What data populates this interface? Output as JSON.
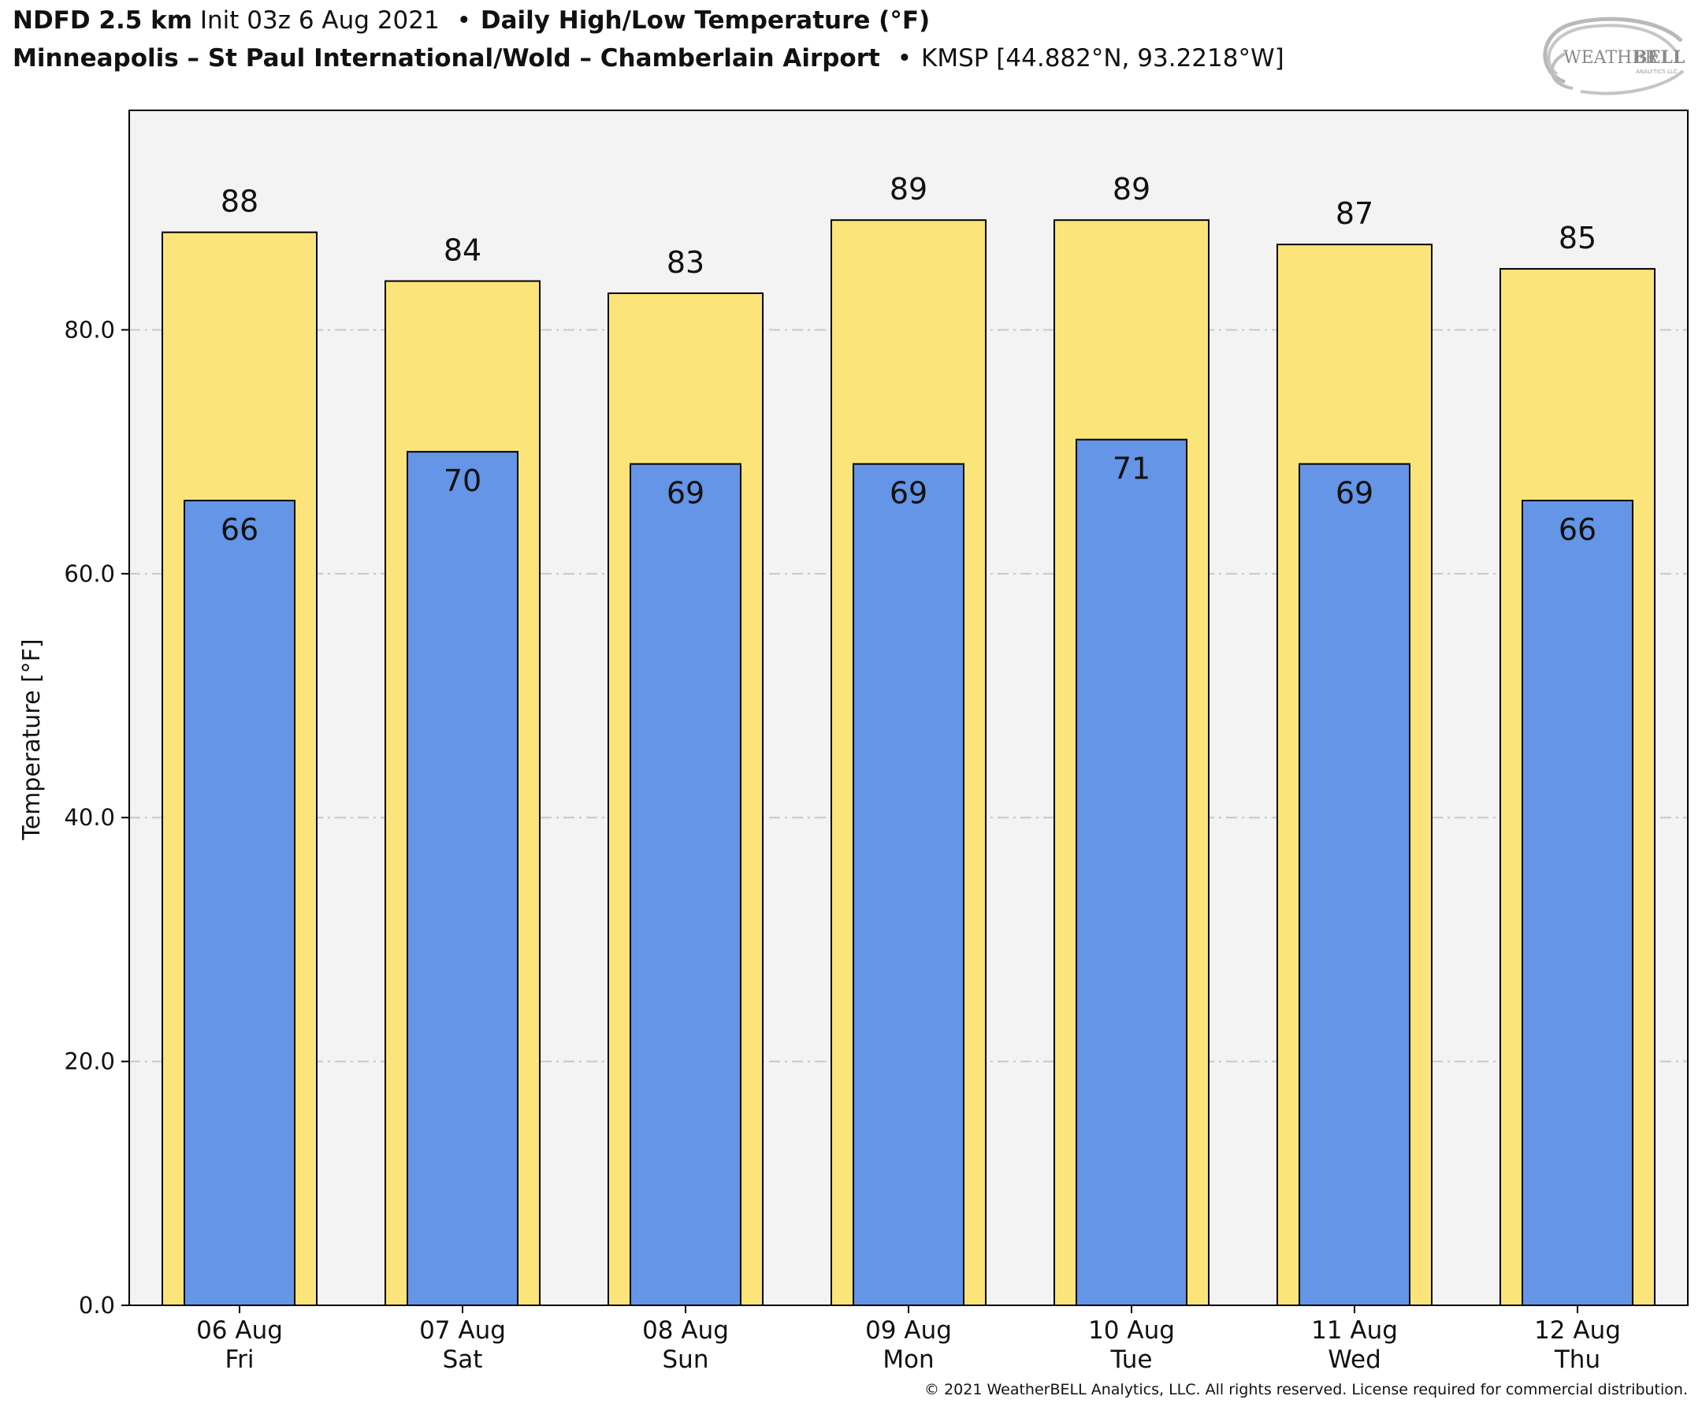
{
  "header": {
    "model": "NDFD 2.5 km",
    "init": "Init 03z 6 Aug 2021",
    "product": "Daily High/Low Temperature (°F)",
    "station_name": "Minneapolis – St Paul International/Wold – Chamberlain Airport",
    "station_info": "KMSP [44.882°N, 93.2218°W]",
    "separator": "•"
  },
  "logo": {
    "text_left": "WEATHER",
    "text_right": "BELL",
    "text_small": "ANALYTICS LLC"
  },
  "copyright": "© 2021 WeatherBELL Analytics, LLC. All rights reserved. License required for commercial distribution.",
  "colors": {
    "high": "#FBE47A",
    "low": "#6495E6",
    "plot_bg": "#F3F3F3",
    "grid": "#C8C8C8"
  },
  "chart_data": {
    "type": "bar",
    "categories": [
      "06 Aug\nFri",
      "07 Aug\nSat",
      "08 Aug\nSun",
      "09 Aug\nMon",
      "10 Aug\nTue",
      "11 Aug\nWed",
      "12 Aug\nThu"
    ],
    "category_dates": [
      "06 Aug",
      "07 Aug",
      "08 Aug",
      "09 Aug",
      "10 Aug",
      "11 Aug",
      "12 Aug"
    ],
    "category_days": [
      "Fri",
      "Sat",
      "Sun",
      "Mon",
      "Tue",
      "Wed",
      "Thu"
    ],
    "series": [
      {
        "values": [
          88,
          84,
          83,
          89,
          89,
          87,
          85
        ]
      },
      {
        "values": [
          66,
          70,
          69,
          69,
          71,
          69,
          66
        ]
      }
    ],
    "title": "Daily High/Low Temperature (°F)",
    "xlabel": "",
    "ylabel": "Temperature [°F]",
    "ylim": [
      0,
      98
    ],
    "yticks": [
      "0.0",
      "20.0",
      "40.0",
      "60.0",
      "80.0"
    ],
    "ytick_values": [
      0,
      20,
      40,
      60,
      80
    ],
    "grid": "horizontal dashed"
  }
}
